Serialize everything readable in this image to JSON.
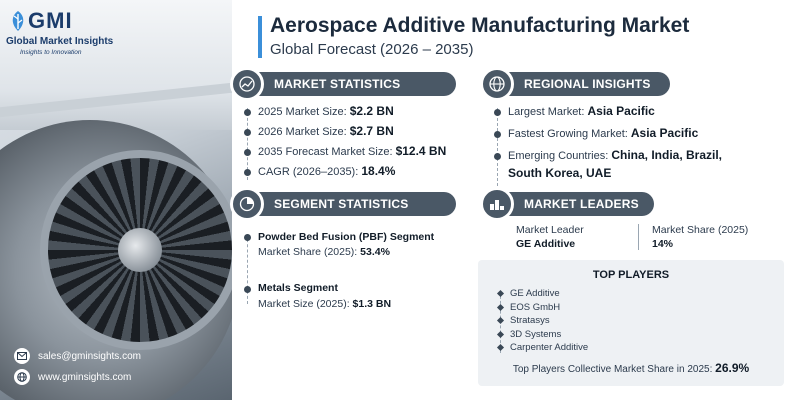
{
  "brand": {
    "logo_mark": "GMI",
    "name": "Global Market Insights",
    "tagline": "Insights to Innovation"
  },
  "contacts": {
    "email": "sales@gminsights.com",
    "website": "www.gminsights.com"
  },
  "header": {
    "title": "Aerospace Additive Manufacturing Market",
    "subtitle": "Global Forecast (2026 – 2035)"
  },
  "market_statistics": {
    "heading": "MARKET STATISTICS",
    "items": [
      {
        "label": "2025 Market Size: ",
        "value": "$2.2 BN"
      },
      {
        "label": "2026 Market Size: ",
        "value": "$2.7 BN"
      },
      {
        "label": "2035 Forecast Market Size: ",
        "value": "$12.4 BN"
      },
      {
        "label": "CAGR (2026–2035): ",
        "value": "18.4%"
      }
    ]
  },
  "regional_insights": {
    "heading": "REGIONAL INSIGHTS",
    "largest_label": "Largest Market: ",
    "largest_value": "Asia Pacific",
    "fastest_label": "Fastest Growing Market: ",
    "fastest_value": "Asia Pacific",
    "emerging_label": "Emerging Countries: ",
    "emerging_value_line1": "China, India, Brazil,",
    "emerging_value_line2": "South Korea, UAE"
  },
  "segment_statistics": {
    "heading": "SEGMENT STATISTICS",
    "seg1_name": "Powder Bed Fusion (PBF) Segment",
    "seg1_label": "Market Share (2025): ",
    "seg1_value": "53.4%",
    "seg2_name": "Metals Segment",
    "seg2_label": "Market Size (2025): ",
    "seg2_value": "$1.3 BN"
  },
  "market_leaders": {
    "heading": "MARKET LEADERS",
    "leader_label": "Market Leader",
    "leader_value": "GE Additive",
    "share_label": "Market Share (2025)",
    "share_value": "14%"
  },
  "top_players": {
    "heading": "TOP PLAYERS",
    "players": [
      "GE Additive",
      "EOS GmbH",
      "Stratasys",
      "3D Systems",
      "Carpenter Additive"
    ],
    "collective_label": "Top Players Collective Market Share in 2025: ",
    "collective_value": "26.9%"
  },
  "colors": {
    "pill": "#4a5866",
    "accent": "#3b8fd9",
    "brand": "#1b3c6b"
  }
}
